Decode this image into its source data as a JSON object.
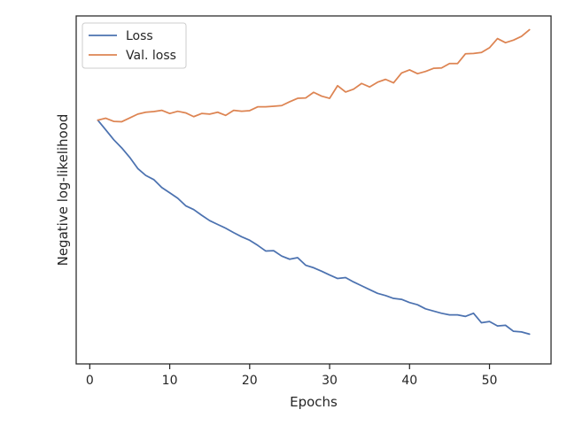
{
  "chart_data": {
    "type": "line",
    "title": "",
    "xlabel": "Epochs",
    "ylabel": "Negative log-likelihood",
    "xlim": [
      -1.7,
      57.7
    ],
    "ylim": [
      0,
      1
    ],
    "x_ticks": [
      0,
      10,
      20,
      30,
      40,
      50
    ],
    "y_ticks_visible": false,
    "grid": false,
    "legend_position": "top-left",
    "series": [
      {
        "name": "Loss",
        "color": "#4c72b0",
        "x": [
          1,
          2,
          3,
          4,
          5,
          6,
          7,
          8,
          9,
          10,
          11,
          12,
          13,
          14,
          15,
          16,
          17,
          18,
          19,
          20,
          21,
          22,
          23,
          24,
          25,
          26,
          27,
          28,
          29,
          30,
          31,
          32,
          33,
          34,
          35,
          36,
          37,
          38,
          39,
          40,
          41,
          42,
          43,
          44,
          45,
          46,
          47,
          48,
          49,
          50,
          51,
          52,
          53,
          54,
          55
        ],
        "values": [
          0.718,
          0.687,
          0.656,
          0.63,
          0.6,
          0.565,
          0.543,
          0.53,
          0.505,
          0.488,
          0.471,
          0.447,
          0.435,
          0.417,
          0.4,
          0.388,
          0.376,
          0.362,
          0.349,
          0.338,
          0.322,
          0.304,
          0.305,
          0.288,
          0.278,
          0.283,
          0.259,
          0.251,
          0.24,
          0.228,
          0.217,
          0.22,
          0.206,
          0.194,
          0.182,
          0.17,
          0.163,
          0.154,
          0.151,
          0.141,
          0.134,
          0.121,
          0.114,
          0.107,
          0.102,
          0.102,
          0.097,
          0.107,
          0.077,
          0.081,
          0.067,
          0.069,
          0.05,
          0.048,
          0.041
        ]
      },
      {
        "name": "Val. loss",
        "color": "#dd8452",
        "x": [
          1,
          2,
          3,
          4,
          5,
          6,
          7,
          8,
          9,
          10,
          11,
          12,
          13,
          14,
          15,
          16,
          17,
          18,
          19,
          20,
          21,
          22,
          23,
          24,
          25,
          26,
          27,
          28,
          29,
          30,
          31,
          32,
          33,
          34,
          35,
          36,
          37,
          38,
          39,
          40,
          41,
          42,
          43,
          44,
          45,
          46,
          47,
          48,
          49,
          50,
          51,
          52,
          53,
          54,
          55
        ],
        "values": [
          0.718,
          0.724,
          0.714,
          0.713,
          0.725,
          0.737,
          0.743,
          0.745,
          0.749,
          0.739,
          0.746,
          0.741,
          0.729,
          0.739,
          0.737,
          0.743,
          0.733,
          0.749,
          0.746,
          0.748,
          0.76,
          0.76,
          0.762,
          0.764,
          0.776,
          0.787,
          0.788,
          0.806,
          0.794,
          0.787,
          0.827,
          0.807,
          0.816,
          0.834,
          0.823,
          0.838,
          0.847,
          0.836,
          0.867,
          0.877,
          0.865,
          0.872,
          0.882,
          0.883,
          0.897,
          0.897,
          0.928,
          0.929,
          0.932,
          0.947,
          0.976,
          0.963,
          0.971,
          0.983,
          1.004
        ]
      }
    ]
  }
}
